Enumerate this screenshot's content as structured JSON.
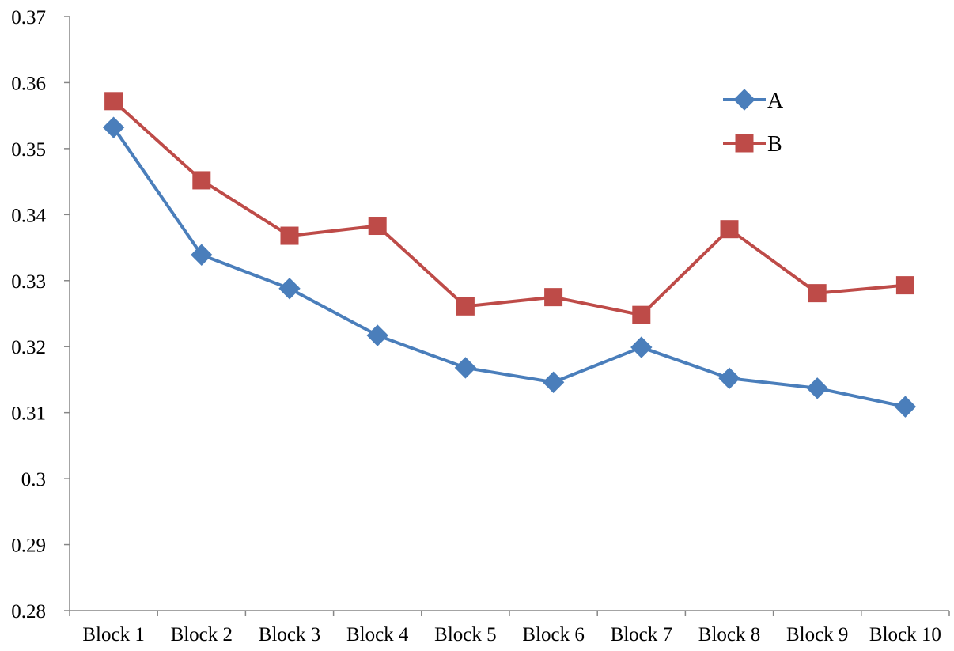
{
  "chart_data": {
    "type": "line",
    "categories": [
      "Block 1",
      "Block 2",
      "Block 3",
      "Block 4",
      "Block 5",
      "Block 6",
      "Block 7",
      "Block 8",
      "Block 9",
      "Block 10"
    ],
    "series": [
      {
        "name": "A",
        "color": "#4A7EBB",
        "marker": "diamond",
        "values": [
          0.3532,
          0.3339,
          0.3288,
          0.3217,
          0.3168,
          0.3146,
          0.3199,
          0.3152,
          0.3137,
          0.3109
        ]
      },
      {
        "name": "B",
        "color": "#BE4B48",
        "marker": "square",
        "values": [
          0.3572,
          0.3452,
          0.3368,
          0.3383,
          0.3261,
          0.3275,
          0.3248,
          0.3378,
          0.3281,
          0.3293
        ]
      }
    ],
    "ylim": [
      0.28,
      0.37
    ],
    "yticks": [
      "0.28",
      "0.29",
      "0.3",
      "0.31",
      "0.32",
      "0.33",
      "0.34",
      "0.35",
      "0.36",
      "0.37"
    ],
    "grid": false,
    "legend_position": "top-right"
  }
}
